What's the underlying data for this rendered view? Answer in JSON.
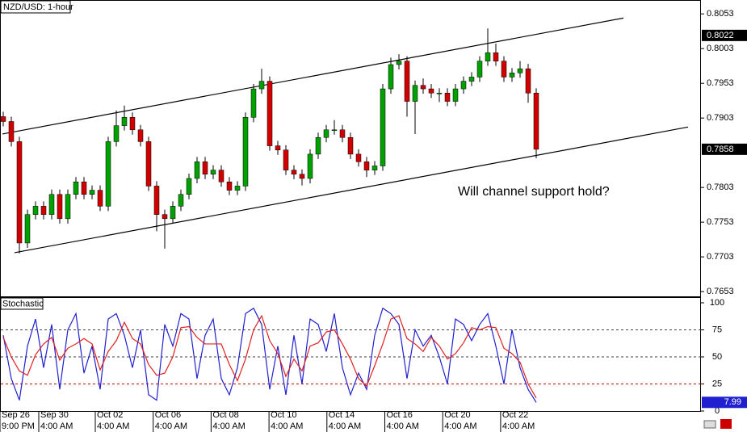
{
  "chart_data": {
    "type": "candlestick",
    "title": "NZD/USD: 1-hour",
    "annotation": "Will channel support hold?",
    "up_color": "#00a000",
    "down_color": "#d00000",
    "candles": {
      "open": [
        0.7905,
        0.7898,
        0.7869,
        0.7723,
        0.7764,
        0.7776,
        0.7764,
        0.7793,
        0.7758,
        0.7793,
        0.7811,
        0.7793,
        0.7799,
        0.7776,
        0.7869,
        0.7892,
        0.7904,
        0.7886,
        0.7869,
        0.7805,
        0.7764,
        0.7758,
        0.7776,
        0.7793,
        0.7816,
        0.784,
        0.7822,
        0.7828,
        0.7811,
        0.7799,
        0.7805,
        0.7904,
        0.7945,
        0.7956,
        0.7863,
        0.7857,
        0.7828,
        0.7822,
        0.7816,
        0.7851,
        0.7875,
        0.7886,
        0.7886,
        0.7875,
        0.7851,
        0.784,
        0.7828,
        0.7834,
        0.7945,
        0.798,
        0.7985,
        0.7927,
        0.795,
        0.7945,
        0.7939,
        0.7939,
        0.7927,
        0.7945,
        0.7956,
        0.7962,
        0.7985,
        0.7997,
        0.7985,
        0.7962,
        0.7968,
        0.7974,
        0.7939
      ],
      "high": [
        0.7912,
        0.7905,
        0.7876,
        0.7771,
        0.7783,
        0.7783,
        0.78,
        0.78,
        0.78,
        0.7818,
        0.7818,
        0.7806,
        0.7806,
        0.7876,
        0.7914,
        0.7921,
        0.7911,
        0.7893,
        0.7876,
        0.7812,
        0.7771,
        0.7783,
        0.78,
        0.7823,
        0.7847,
        0.7847,
        0.7835,
        0.7835,
        0.7818,
        0.7812,
        0.7911,
        0.7952,
        0.7974,
        0.7963,
        0.787,
        0.7864,
        0.7835,
        0.7829,
        0.7858,
        0.7882,
        0.7893,
        0.79,
        0.7893,
        0.7882,
        0.7858,
        0.7847,
        0.7841,
        0.7952,
        0.799,
        0.7995,
        0.7992,
        0.7957,
        0.796,
        0.7952,
        0.7946,
        0.7946,
        0.7952,
        0.7963,
        0.7969,
        0.7992,
        0.8032,
        0.801,
        0.7992,
        0.7975,
        0.7985,
        0.7981,
        0.7946
      ],
      "low": [
        0.7891,
        0.7862,
        0.7708,
        0.7716,
        0.7757,
        0.7757,
        0.7757,
        0.7751,
        0.7751,
        0.7786,
        0.7786,
        0.7786,
        0.7769,
        0.7769,
        0.7862,
        0.7885,
        0.7879,
        0.7862,
        0.7798,
        0.774,
        0.7715,
        0.7751,
        0.7769,
        0.7786,
        0.7809,
        0.7815,
        0.7815,
        0.7804,
        0.7792,
        0.7792,
        0.7798,
        0.7897,
        0.7938,
        0.7856,
        0.785,
        0.7821,
        0.7815,
        0.7806,
        0.7809,
        0.7844,
        0.7868,
        0.7879,
        0.7868,
        0.7844,
        0.7833,
        0.7818,
        0.7821,
        0.7827,
        0.7938,
        0.7973,
        0.7905,
        0.788,
        0.7938,
        0.7932,
        0.7926,
        0.792,
        0.792,
        0.7938,
        0.7949,
        0.7955,
        0.7978,
        0.7978,
        0.7955,
        0.7955,
        0.7961,
        0.7925,
        0.7845
      ],
      "close": [
        0.7898,
        0.7869,
        0.7723,
        0.7764,
        0.7776,
        0.7764,
        0.7793,
        0.7758,
        0.7793,
        0.7811,
        0.7793,
        0.7799,
        0.7776,
        0.7869,
        0.7892,
        0.7904,
        0.7886,
        0.7869,
        0.7805,
        0.7764,
        0.7758,
        0.7776,
        0.7793,
        0.7816,
        0.784,
        0.7822,
        0.7828,
        0.7811,
        0.7799,
        0.7805,
        0.7904,
        0.7945,
        0.7956,
        0.7863,
        0.7857,
        0.7828,
        0.7822,
        0.7816,
        0.7851,
        0.7875,
        0.7886,
        0.7886,
        0.7875,
        0.7851,
        0.784,
        0.7828,
        0.7834,
        0.7945,
        0.798,
        0.7985,
        0.7927,
        0.795,
        0.7945,
        0.7939,
        0.7939,
        0.7927,
        0.7945,
        0.7956,
        0.7962,
        0.7985,
        0.7997,
        0.7985,
        0.7962,
        0.7968,
        0.7974,
        0.7939,
        0.7858
      ]
    },
    "ylim": [
      0.7645,
      0.8073
    ],
    "yticks": [
      0.8053,
      0.8003,
      0.7953,
      0.7903,
      0.7803,
      0.7753,
      0.7703,
      0.7653
    ],
    "price_markers": [
      0.8022,
      0.7858
    ],
    "trendlines": [
      {
        "start": 0.788,
        "end": 0.8047
      },
      {
        "start": 0.7709,
        "end": 0.789
      }
    ],
    "x_labels": [
      {
        "date": "Sep 26",
        "time": "9:00 PM"
      },
      {
        "date": "Sep 30",
        "time": "4:00 AM"
      },
      {
        "date": "Oct 02",
        "time": "4:00 AM"
      },
      {
        "date": "Oct 06",
        "time": "4:00 AM"
      },
      {
        "date": "Oct 08",
        "time": "4:00 AM"
      },
      {
        "date": "Oct 10",
        "time": "4:00 AM"
      },
      {
        "date": "Oct 14",
        "time": "4:00 AM"
      },
      {
        "date": "Oct 16",
        "time": "4:00 AM"
      },
      {
        "date": "Oct 20",
        "time": "4:00 AM"
      },
      {
        "date": "Oct 22",
        "time": "4:00 AM"
      }
    ],
    "stochastic": {
      "title": "Stochastic",
      "ylim": [
        0,
        100
      ],
      "yticks": [
        100,
        75,
        50,
        25,
        0
      ],
      "levels": [
        75,
        50,
        25
      ],
      "series": [
        {
          "color": "#2020d0",
          "values": [
            70,
            30,
            10,
            60,
            85,
            40,
            80,
            20,
            75,
            90,
            35,
            60,
            20,
            85,
            90,
            70,
            40,
            75,
            15,
            10,
            80,
            60,
            90,
            85,
            30,
            70,
            85,
            30,
            15,
            40,
            90,
            95,
            80,
            20,
            60,
            15,
            70,
            25,
            85,
            80,
            55,
            90,
            40,
            15,
            35,
            20,
            70,
            95,
            90,
            80,
            30,
            75,
            60,
            70,
            50,
            25,
            85,
            80,
            65,
            80,
            90,
            60,
            25,
            75,
            40,
            20,
            7.99
          ]
        },
        {
          "color": "#e02020",
          "values": [
            68,
            50,
            37,
            33,
            52,
            62,
            68,
            47,
            58,
            62,
            67,
            62,
            38,
            55,
            65,
            82,
            67,
            62,
            43,
            33,
            35,
            50,
            77,
            78,
            68,
            62,
            62,
            62,
            43,
            28,
            48,
            75,
            88,
            65,
            53,
            32,
            48,
            37,
            60,
            63,
            73,
            75,
            62,
            48,
            30,
            23,
            42,
            62,
            85,
            88,
            67,
            62,
            55,
            68,
            60,
            48,
            53,
            63,
            77,
            75,
            78,
            77,
            58,
            53,
            45,
            25,
            12
          ]
        }
      ]
    }
  }
}
